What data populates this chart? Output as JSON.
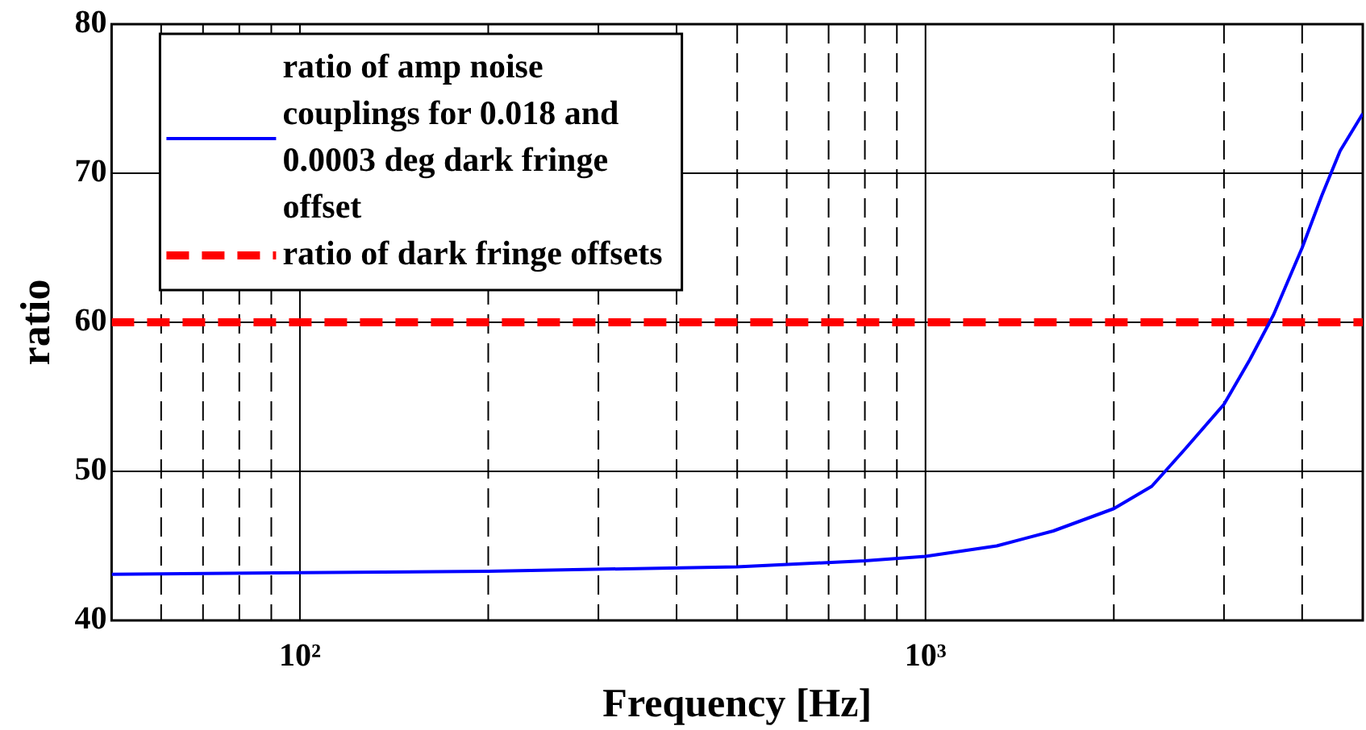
{
  "chart_data": {
    "type": "line",
    "xlabel": "Frequency [Hz]",
    "ylabel": "ratio",
    "log": "x",
    "xlim": [
      50,
      5000
    ],
    "xticks": [
      {
        "value": 60,
        "label": null
      },
      {
        "value": 70,
        "label": null
      },
      {
        "value": 80,
        "label": null
      },
      {
        "value": 90,
        "label": null
      },
      {
        "value": 100,
        "label": "10²"
      },
      {
        "value": 200,
        "label": null
      },
      {
        "value": 300,
        "label": null
      },
      {
        "value": 400,
        "label": null
      },
      {
        "value": 500,
        "label": null
      },
      {
        "value": 600,
        "label": null
      },
      {
        "value": 700,
        "label": null
      },
      {
        "value": 800,
        "label": null
      },
      {
        "value": 900,
        "label": null
      },
      {
        "value": 1000,
        "label": "10³"
      },
      {
        "value": 2000,
        "label": null
      },
      {
        "value": 3000,
        "label": null
      },
      {
        "value": 4000,
        "label": null
      }
    ],
    "ylim": [
      40,
      80
    ],
    "yticks": [
      40,
      50,
      60,
      70,
      80
    ],
    "grid": true,
    "legend": "top left",
    "marker": "none",
    "series": [
      {
        "name": "ratio of amp noise couplings for 0.018 and 0.0003 deg dark fringe offset",
        "color": "#0000ff",
        "line_style": "solid",
        "x": [
          50,
          100,
          200,
          500,
          800,
          1000,
          1300,
          1600,
          2000,
          2300,
          2600,
          3000,
          3300,
          3600,
          4000,
          4300,
          4600,
          5000
        ],
        "values": [
          43.1,
          43.2,
          43.3,
          43.6,
          44,
          44.3,
          45,
          46,
          47.5,
          49,
          51.5,
          54.5,
          57.5,
          60.5,
          65,
          68.5,
          71.5,
          74
        ]
      },
      {
        "name": "ratio of dark fringe offsets",
        "color": "#ff0000",
        "line_style": "dashed",
        "x": [
          50,
          5000
        ],
        "values": [
          60,
          60
        ]
      }
    ]
  }
}
